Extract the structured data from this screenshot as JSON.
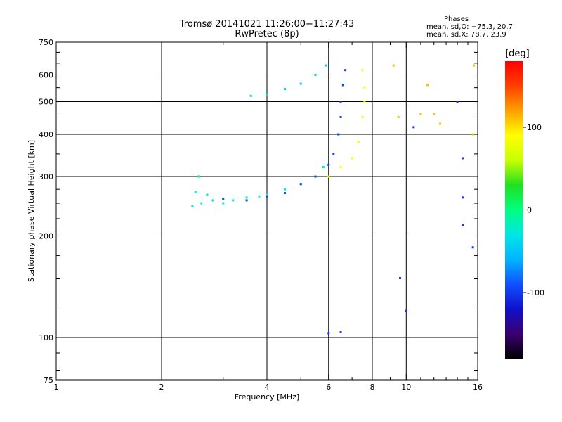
{
  "header": {
    "title_line1": "Tromsø 20141021 11:26:00−11:27:43",
    "title_line2": "RwPretec (8p)",
    "phases_title": "Phases",
    "phases_line1": "mean, sd,O: −75.3, 20.7",
    "phases_line2": "mean, sd,X:  78.7, 23.9"
  },
  "colorbar": {
    "label": "[deg]",
    "ticks": [
      100,
      0,
      -100
    ],
    "range": [
      -180,
      180
    ],
    "colormap": [
      "#000000",
      "#3a0070",
      "#1010cc",
      "#1050ff",
      "#00b4ff",
      "#00e6e6",
      "#00ff80",
      "#20e020",
      "#c8ff00",
      "#ffff00",
      "#ffa000",
      "#ff4000",
      "#ff0000"
    ]
  },
  "chart_data": {
    "type": "scatter",
    "title": "Tromsø 20141021 11:26:00−11:27:43",
    "subtitle": "RwPretec (8p)",
    "xlabel": "Frequency [MHz]",
    "ylabel": "Stationary phase Virtual Height [km]",
    "x_scale": "log",
    "y_scale": "log",
    "xlim": [
      1,
      16
    ],
    "ylim": [
      75,
      750
    ],
    "x_ticks": [
      1,
      2,
      4,
      6,
      8,
      10,
      16
    ],
    "y_ticks": [
      75,
      100,
      200,
      300,
      400,
      500,
      600,
      750
    ],
    "grid": true,
    "series": [
      {
        "points": [
          [
            2.45,
            245
          ],
          [
            2.5,
            270
          ],
          [
            2.55,
            300
          ],
          [
            2.6,
            250
          ],
          [
            2.7,
            265
          ],
          [
            2.8,
            255
          ],
          [
            3.0,
            250
          ],
          [
            3.2,
            255
          ],
          [
            3.5,
            260
          ],
          [
            3.8,
            262
          ],
          [
            4.0,
            265
          ],
          [
            4.5,
            275
          ],
          [
            5.0,
            285
          ],
          [
            5.5,
            300
          ],
          [
            5.8,
            320
          ]
        ],
        "phase": -20
      },
      {
        "points": [
          [
            3.0,
            258
          ],
          [
            3.5,
            255
          ],
          [
            4.0,
            262
          ],
          [
            4.5,
            268
          ],
          [
            5.0,
            285
          ],
          [
            5.5,
            300
          ],
          [
            6.0,
            325
          ],
          [
            6.2,
            350
          ],
          [
            6.4,
            400
          ],
          [
            6.5,
            450
          ],
          [
            6.5,
            500
          ],
          [
            6.6,
            560
          ],
          [
            6.7,
            620
          ]
        ],
        "phase": -95
      },
      {
        "points": [
          [
            3.6,
            520
          ],
          [
            4.0,
            525
          ],
          [
            4.5,
            545
          ],
          [
            5.0,
            565
          ],
          [
            5.5,
            600
          ],
          [
            5.9,
            640
          ]
        ],
        "phase": -40
      },
      {
        "points": [
          [
            6.0,
            300
          ],
          [
            6.5,
            320
          ],
          [
            7.0,
            340
          ],
          [
            7.3,
            380
          ],
          [
            7.5,
            450
          ],
          [
            7.6,
            500
          ],
          [
            7.6,
            550
          ],
          [
            7.5,
            620
          ]
        ],
        "phase": 80
      },
      {
        "points": [
          [
            9.2,
            640
          ],
          [
            9.5,
            450
          ],
          [
            11.0,
            460
          ],
          [
            11.5,
            560
          ],
          [
            12.0,
            460
          ],
          [
            12.5,
            430
          ],
          [
            15.5,
            400
          ],
          [
            15.6,
            640
          ]
        ],
        "phase": 110
      },
      {
        "points": [
          [
            9.6,
            150
          ],
          [
            10.0,
            120
          ],
          [
            10.5,
            420
          ],
          [
            14.0,
            500
          ],
          [
            14.5,
            340
          ],
          [
            14.5,
            260
          ],
          [
            14.5,
            215
          ],
          [
            15.5,
            185
          ],
          [
            6.0,
            103
          ],
          [
            6.5,
            104
          ]
        ],
        "phase": -100
      }
    ]
  }
}
